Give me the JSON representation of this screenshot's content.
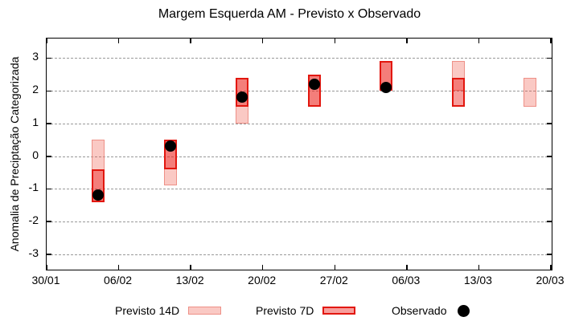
{
  "title": "Margem Esquerda AM - Previsto x Observado",
  "y_axis_label": "Anomalia de Preciptação Categorizada",
  "legend": {
    "item_14d": "Previsto 14D",
    "item_7d": "Previsto 7D",
    "item_obs": "Observado"
  },
  "colors": {
    "forecast14_fill": "rgba(240,75,60,0.30)",
    "forecast14_border": "#ee9087",
    "forecast7_fill": "rgba(235,25,20,0.42)",
    "forecast7_border": "#e2170f",
    "observed": "#000000",
    "grid": "#999999"
  },
  "chart_data": {
    "type": "bar",
    "subtype": "forecast-range-bars-with-observed-points",
    "title": "Margem Esquerda AM - Previsto x Observado",
    "xlabel": "",
    "ylabel": "Anomalia de Preciptação Categorizada",
    "ylim": [
      -3.45,
      3.6
    ],
    "y_ticks": [
      3,
      2,
      1,
      0,
      -1,
      -2,
      -3
    ],
    "x_ticks": [
      {
        "label": "30/01",
        "day": 0
      },
      {
        "label": "06/02",
        "day": 7
      },
      {
        "label": "13/02",
        "day": 14
      },
      {
        "label": "20/02",
        "day": 21
      },
      {
        "label": "27/02",
        "day": 28
      },
      {
        "label": "06/03",
        "day": 35
      },
      {
        "label": "13/03",
        "day": 42
      },
      {
        "label": "20/03",
        "day": 49
      }
    ],
    "x_total_days": 49,
    "grid": {
      "horizontal": true,
      "style": "dashed",
      "on": true
    },
    "legend_position": "bottom",
    "series": [
      {
        "name": "Previsto 14D",
        "type": "range-bar",
        "bars": [
          {
            "date": "04/02",
            "day": 5,
            "high": 0.5,
            "low": -1.4
          },
          {
            "date": "11/02",
            "day": 12,
            "high": 0.5,
            "low": -0.9
          },
          {
            "date": "18/02",
            "day": 19,
            "high": 2.4,
            "low": 1.0
          },
          {
            "date": "25/02",
            "day": 26,
            "high": 2.5,
            "low": 1.5
          },
          {
            "date": "04/03",
            "day": 33,
            "high": 2.9,
            "low": 2.0
          },
          {
            "date": "11/03",
            "day": 40,
            "high": 2.9,
            "low": 2.0
          },
          {
            "date": "18/03",
            "day": 47,
            "high": 2.4,
            "low": 1.5
          }
        ]
      },
      {
        "name": "Previsto 7D",
        "type": "range-bar",
        "bars": [
          {
            "date": "04/02",
            "day": 5,
            "high": -0.4,
            "low": -1.4
          },
          {
            "date": "11/02",
            "day": 12,
            "high": 0.5,
            "low": -0.4
          },
          {
            "date": "18/02",
            "day": 19,
            "high": 2.4,
            "low": 1.5
          },
          {
            "date": "25/02",
            "day": 26,
            "high": 2.5,
            "low": 1.5
          },
          {
            "date": "04/03",
            "day": 33,
            "high": 2.9,
            "low": 2.0
          },
          {
            "date": "11/03",
            "day": 40,
            "high": 2.4,
            "low": 1.5
          }
        ]
      },
      {
        "name": "Observado",
        "type": "scatter",
        "points": [
          {
            "date": "04/02",
            "day": 5,
            "y": -1.2
          },
          {
            "date": "11/02",
            "day": 12,
            "y": 0.3
          },
          {
            "date": "18/02",
            "day": 19,
            "y": 1.8
          },
          {
            "date": "25/02",
            "day": 26,
            "y": 2.2
          },
          {
            "date": "04/03",
            "day": 33,
            "y": 2.1
          }
        ]
      }
    ]
  }
}
